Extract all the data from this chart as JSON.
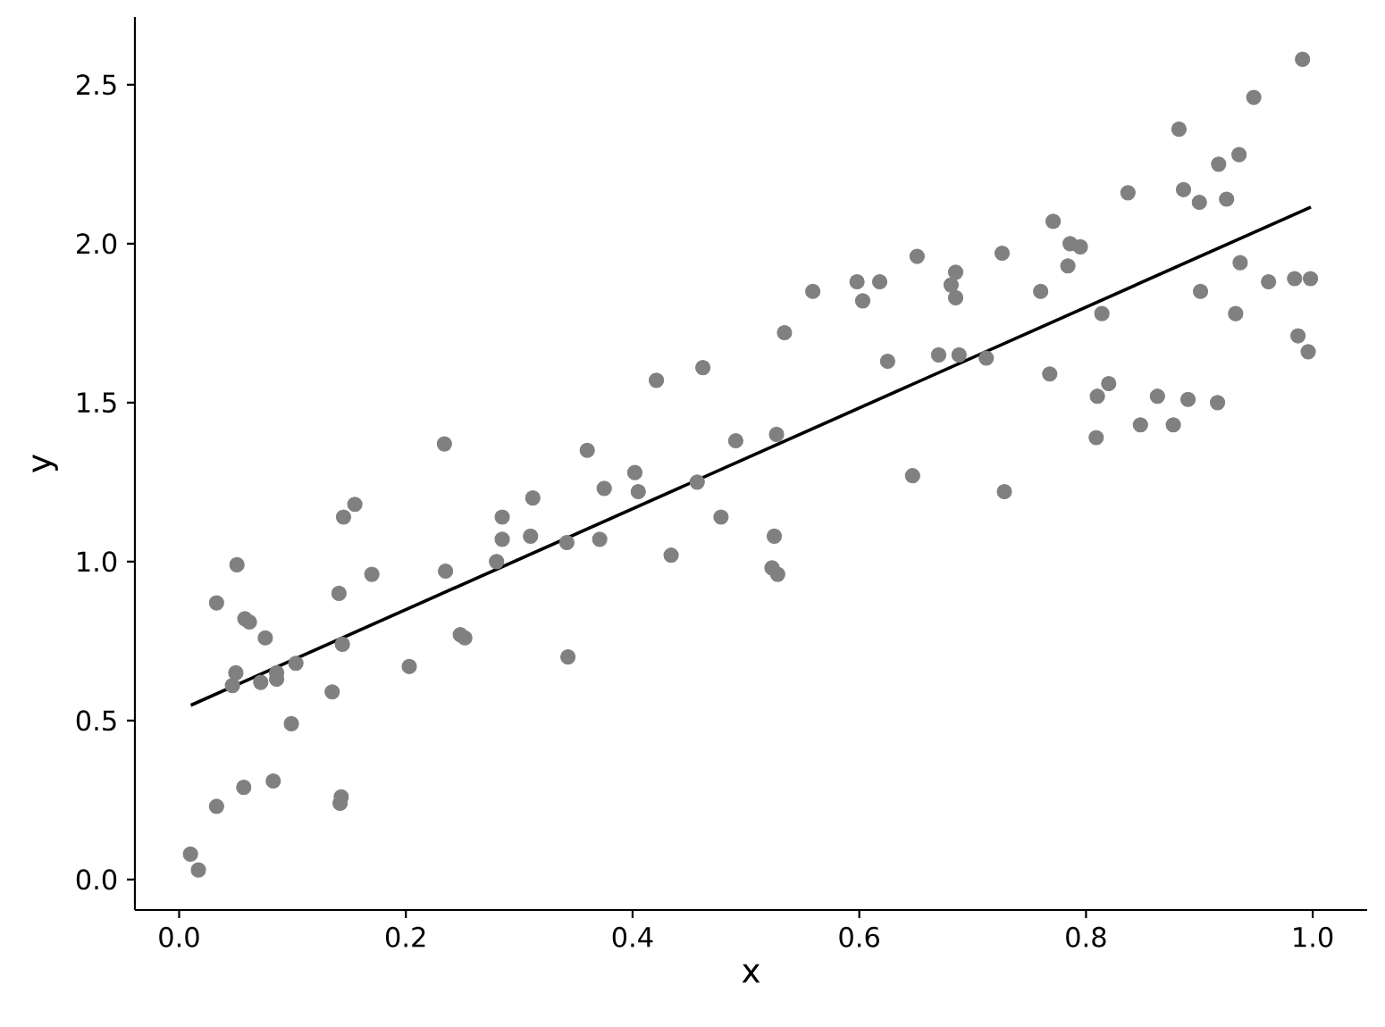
{
  "chart_data": {
    "type": "scatter",
    "xlabel": "x",
    "ylabel": "y",
    "xlim": [
      -0.039,
      1.048
    ],
    "ylim": [
      -0.096,
      2.713
    ],
    "xticks": [
      {
        "value": 0,
        "label": "0.0"
      },
      {
        "value": 0.2,
        "label": "0.2"
      },
      {
        "value": 0.4,
        "label": "0.4"
      },
      {
        "value": 0.6,
        "label": "0.6"
      },
      {
        "value": 0.8,
        "label": "0.8"
      },
      {
        "value": 1,
        "label": "1.0"
      }
    ],
    "yticks": [
      {
        "value": 0,
        "label": "0.0"
      },
      {
        "value": 0.5,
        "label": "0.5"
      },
      {
        "value": 1,
        "label": "1.0"
      },
      {
        "value": 1.5,
        "label": "1.5"
      },
      {
        "value": 2,
        "label": "2.0"
      },
      {
        "value": 2.5,
        "label": "2.5"
      }
    ],
    "series": [
      {
        "marker": "circle",
        "color": "#808080",
        "x": [
          0.01,
          0.017,
          0.033,
          0.033,
          0.051,
          0.047,
          0.05,
          0.057,
          0.058,
          0.062,
          0.072,
          0.076,
          0.083,
          0.086,
          0.086,
          0.099,
          0.103,
          0.135,
          0.141,
          0.142,
          0.143,
          0.145,
          0.144,
          0.155,
          0.17,
          0.203,
          0.234,
          0.235,
          0.248,
          0.252,
          0.28,
          0.285,
          0.285,
          0.31,
          0.312,
          0.342,
          0.343,
          0.36,
          0.371,
          0.375,
          0.402,
          0.405,
          0.421,
          0.434,
          0.457,
          0.462,
          0.478,
          0.491,
          0.523,
          0.525,
          0.527,
          0.528,
          0.534,
          0.559,
          0.598,
          0.603,
          0.618,
          0.625,
          0.647,
          0.651,
          0.67,
          0.681,
          0.685,
          0.685,
          0.688,
          0.712,
          0.726,
          0.728,
          0.76,
          0.768,
          0.771,
          0.784,
          0.786,
          0.795,
          0.809,
          0.81,
          0.814,
          0.82,
          0.837,
          0.848,
          0.863,
          0.877,
          0.882,
          0.886,
          0.89,
          0.9,
          0.901,
          0.916,
          0.917,
          0.924,
          0.932,
          0.935,
          0.936,
          0.948,
          0.961,
          0.984,
          0.987,
          0.991,
          0.996,
          0.998
        ],
        "values": [
          0.08,
          0.03,
          0.23,
          0.87,
          0.99,
          0.61,
          0.65,
          0.29,
          0.82,
          0.81,
          0.62,
          0.76,
          0.31,
          0.65,
          0.63,
          0.49,
          0.68,
          0.59,
          0.9,
          0.24,
          0.26,
          1.14,
          0.74,
          1.18,
          0.96,
          0.67,
          1.37,
          0.97,
          0.77,
          0.76,
          1.0,
          1.14,
          1.07,
          1.08,
          1.2,
          1.06,
          0.7,
          1.35,
          1.07,
          1.23,
          1.28,
          1.22,
          1.57,
          1.02,
          1.25,
          1.61,
          1.14,
          1.38,
          0.98,
          1.08,
          1.4,
          0.96,
          1.72,
          1.85,
          1.88,
          1.82,
          1.88,
          1.63,
          1.27,
          1.96,
          1.65,
          1.87,
          1.83,
          1.91,
          1.65,
          1.64,
          1.97,
          1.22,
          1.85,
          1.59,
          2.07,
          1.93,
          2.0,
          1.99,
          1.39,
          1.52,
          1.78,
          1.56,
          2.16,
          1.43,
          1.52,
          1.43,
          2.36,
          2.17,
          1.51,
          2.13,
          1.85,
          1.5,
          2.25,
          2.14,
          1.78,
          2.28,
          1.94,
          2.46,
          1.88,
          1.89,
          1.71,
          2.58,
          1.66,
          1.89
        ]
      },
      {
        "type": "line",
        "color": "#000000",
        "x": [
          0.0103,
          0.9984
        ],
        "values": [
          0.548,
          2.115
        ]
      }
    ]
  }
}
